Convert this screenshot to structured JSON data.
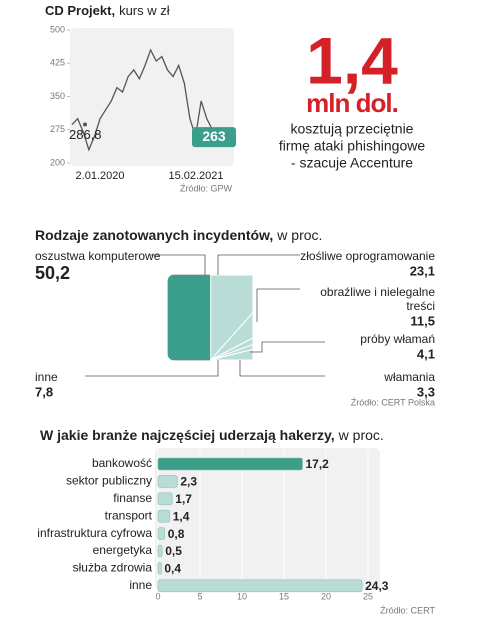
{
  "chart_data": [
    {
      "type": "line",
      "title": "CD Projekt,",
      "subtitle": "kurs w zł",
      "categories": [
        "2.01.2020",
        null,
        null,
        null,
        null,
        null,
        null,
        null,
        null,
        null,
        null,
        null,
        null,
        null,
        null,
        null,
        null,
        null,
        null,
        null,
        null,
        null,
        null,
        null,
        null,
        null,
        "15.02.2021"
      ],
      "values": [
        286.8,
        300,
        270,
        230,
        260,
        300,
        320,
        340,
        370,
        360,
        395,
        410,
        390,
        420,
        455,
        430,
        440,
        410,
        395,
        420,
        380,
        300,
        260,
        340,
        300,
        275,
        263
      ],
      "value_labels": [
        "286,8",
        null,
        null,
        null,
        null,
        null,
        null,
        null,
        null,
        null,
        null,
        null,
        null,
        null,
        null,
        null,
        null,
        null,
        null,
        null,
        null,
        null,
        null,
        null,
        null,
        null,
        "263"
      ],
      "color": "#555555",
      "ylim": [
        200,
        500
      ],
      "yticks": [
        200,
        275,
        350,
        425,
        500
      ],
      "grid": false,
      "source": "Źródło: GPW"
    },
    {
      "type": "square-fan",
      "title": "Rodzaje zanotowanych incydentów,",
      "subtitle": "w proc.",
      "categories": [
        "oszustwa komputerowe",
        "złośliwe oprogramowanie",
        "obraźliwe i nielegalne treści",
        "próby włamań",
        "włamania",
        "inne"
      ],
      "values": [
        50.2,
        23.1,
        11.5,
        4.1,
        3.3,
        7.8
      ],
      "value_labels": [
        "50,2",
        "23,1",
        "11,5",
        "4,1",
        "3,3",
        "7,8"
      ],
      "colors": [
        "#3a9e8a",
        "#b9ddd6"
      ],
      "source": "Źródło: CERT Polska"
    },
    {
      "type": "hbar",
      "title": "W jakie branże najczęściej uderzają hakerzy,",
      "subtitle": "w proc.",
      "categories": [
        "bankowość",
        "sektor publiczny",
        "finanse",
        "transport",
        "infrastruktura cyfrowa",
        "energetyka",
        "służba zdrowia",
        "inne"
      ],
      "values": [
        17.2,
        2.3,
        1.7,
        1.4,
        0.8,
        0.5,
        0.4,
        24.3
      ],
      "value_labels": [
        "17,2",
        "2,3",
        "1,7",
        "1,4",
        "0,8",
        "0,5",
        "0,4",
        "24,3"
      ],
      "colors": [
        "#3a9e8a",
        "#b9ddd6",
        "#b9ddd6",
        "#b9ddd6",
        "#b9ddd6",
        "#b9ddd6",
        "#b9ddd6",
        "#b9ddd6"
      ],
      "xlim": [
        0,
        25
      ],
      "xticks": [
        0,
        5,
        10,
        15,
        20,
        25
      ],
      "source": "Źródło: CERT"
    }
  ],
  "callout": {
    "value": "1,4",
    "unit": "mln dol.",
    "lines": [
      "kosztują przeciętnie",
      "firmę ataki phishingowe",
      "- szacuje Accenture"
    ]
  }
}
